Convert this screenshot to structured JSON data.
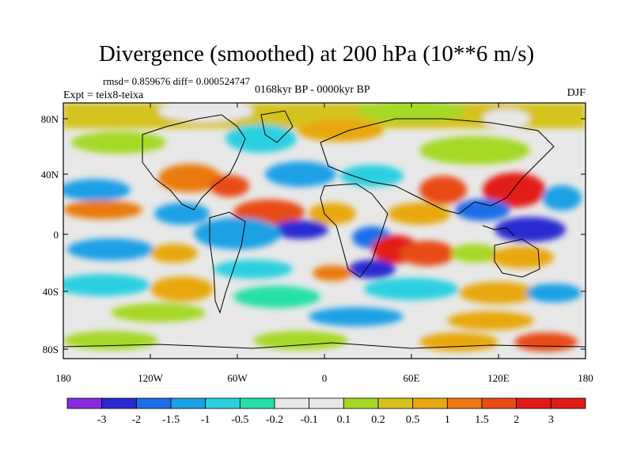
{
  "title": "Divergence (smoothed) at 200 hPa (10**6 m/s)",
  "stats": "rmsd= 0.859676 diff= 0.000524747",
  "period": "0168kyr BP - 0000kyr BP",
  "experiment": "Expt = teix8-teixa",
  "season": "DJF",
  "lat_labels": [
    "80N",
    "40N",
    "0",
    "40S",
    "80S"
  ],
  "lon_labels": [
    "180",
    "120W",
    "60W",
    "0",
    "60E",
    "120E",
    "180"
  ],
  "colorbar": {
    "labels": [
      "-3",
      "-2",
      "-1.5",
      "-1",
      "-0.5",
      "-0.2",
      "-0.1",
      "0.1",
      "0.2",
      "0.5",
      "1",
      "1.5",
      "2",
      "3"
    ],
    "colors": [
      "#8a2be2",
      "#2a2ad2",
      "#1a6ee8",
      "#1aa0e6",
      "#2ad0e0",
      "#26e0a8",
      "#e8e8e8",
      "#e8e8e8",
      "#a6d826",
      "#d6c21c",
      "#e8a810",
      "#ea7a10",
      "#e84c14",
      "#e21a14",
      "#e21a14"
    ]
  }
}
